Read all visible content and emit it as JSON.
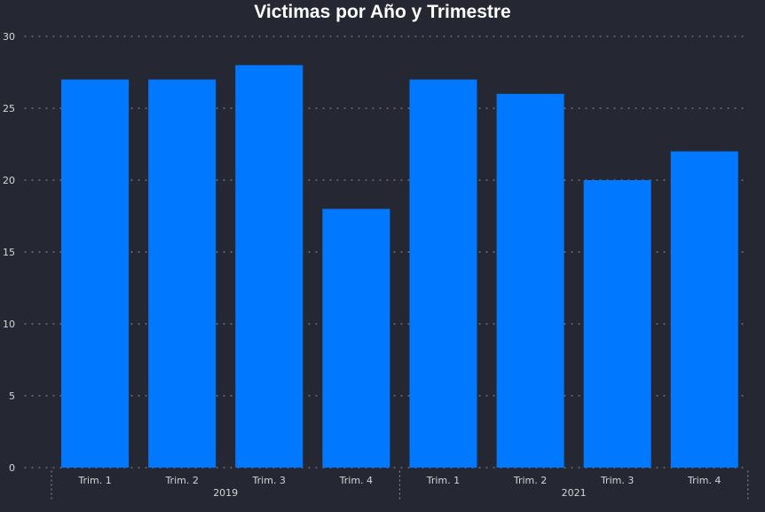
{
  "chart_data": {
    "type": "bar",
    "title": "Victimas por Año y Trimestre",
    "xlabel": "",
    "ylabel": "",
    "ylim": [
      0,
      30
    ],
    "yticks": [
      0,
      5,
      10,
      15,
      20,
      25,
      30
    ],
    "grid": true,
    "legend": "none",
    "colors": {
      "bar": "#0078ff",
      "background": "#252733",
      "text": "#d6d6d6",
      "title": "#ffffff",
      "grid": "#a0a0a0"
    },
    "groups": [
      {
        "label": "2019",
        "categories": [
          "Trim. 1",
          "Trim. 2",
          "Trim. 3",
          "Trim. 4"
        ],
        "values": [
          27,
          27,
          28,
          18
        ]
      },
      {
        "label": "2021",
        "categories": [
          "Trim. 1",
          "Trim. 2",
          "Trim. 3",
          "Trim. 4"
        ],
        "values": [
          27,
          26,
          20,
          22
        ]
      }
    ]
  }
}
